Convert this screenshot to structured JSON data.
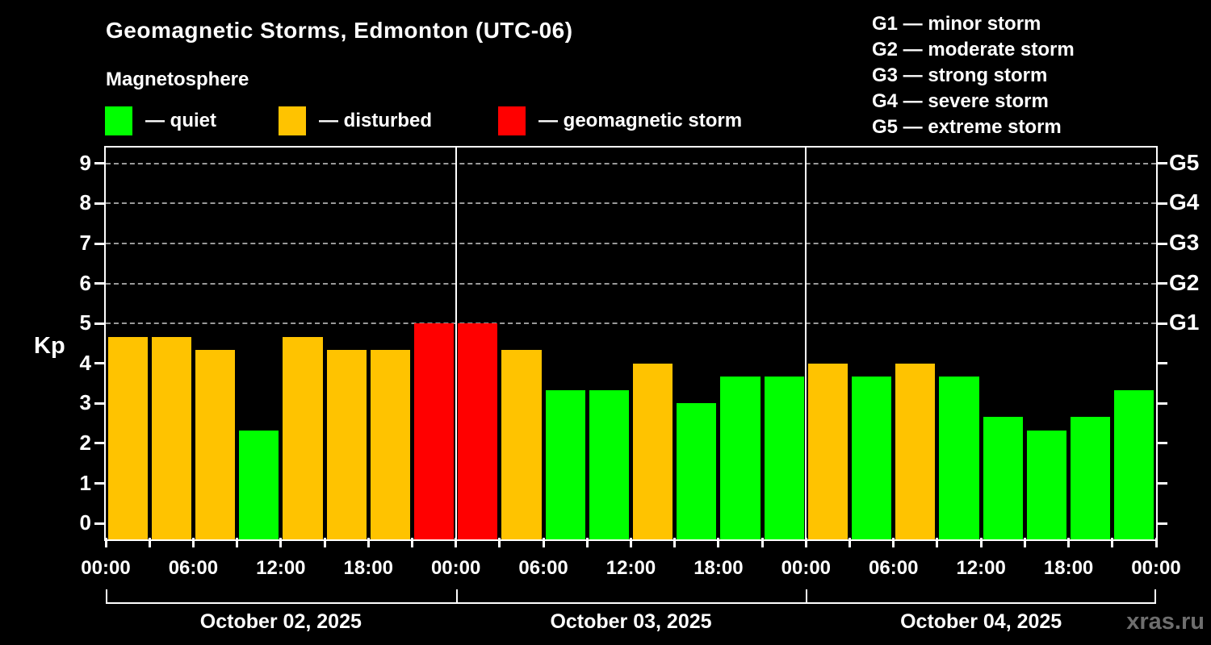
{
  "header": {
    "title": "Geomagnetic Storms, Edmonton (UTC-06)",
    "subtitle": "Magnetosphere"
  },
  "legend": {
    "items": [
      {
        "name": "quiet",
        "label": "— quiet",
        "color": "#00ff00"
      },
      {
        "name": "disturbed",
        "label": "— disturbed",
        "color": "#ffc300"
      },
      {
        "name": "storm",
        "label": "— geomagnetic storm",
        "color": "#ff0000"
      }
    ]
  },
  "storm_scale_legend": {
    "items": [
      "G1 — minor storm",
      "G2 — moderate storm",
      "G3 — strong storm",
      "G4 — severe storm",
      "G5 — extreme storm"
    ]
  },
  "watermark": "xras.ru",
  "chart_data": {
    "type": "bar",
    "title": "Geomagnetic Storms, Edmonton (UTC-06)",
    "ylabel": "Kp",
    "ylim": [
      -0.4,
      9.4
    ],
    "y_ticks": [
      0,
      1,
      2,
      3,
      4,
      5,
      6,
      7,
      8,
      9
    ],
    "gridlines_at": [
      5,
      6,
      7,
      8,
      9
    ],
    "grid_style": "dashed",
    "right_axis_labels": [
      {
        "value": 5,
        "label": "G1"
      },
      {
        "value": 6,
        "label": "G2"
      },
      {
        "value": 7,
        "label": "G3"
      },
      {
        "value": 8,
        "label": "G4"
      },
      {
        "value": 9,
        "label": "G5"
      }
    ],
    "x_hours_total": 72,
    "bar_interval_hours": 3,
    "x_tick_every_hours": 3,
    "x_label_every_hours": 6,
    "x_tick_labels": [
      "00:00",
      "06:00",
      "12:00",
      "18:00",
      "00:00",
      "06:00",
      "12:00",
      "18:00",
      "00:00",
      "06:00",
      "12:00",
      "18:00",
      "00:00"
    ],
    "days": [
      "October 02, 2025",
      "October 03, 2025",
      "October 04, 2025"
    ],
    "colors": {
      "quiet": "#00ff00",
      "disturbed": "#ffc300",
      "storm": "#ff0000"
    },
    "series": [
      {
        "name": "Kp index",
        "values": [
          4.67,
          4.67,
          4.33,
          2.33,
          4.67,
          4.33,
          4.33,
          5.0,
          5.0,
          4.33,
          3.33,
          3.33,
          4.0,
          3.0,
          3.67,
          3.67,
          4.0,
          3.67,
          4.0,
          3.67,
          2.67,
          2.33,
          2.67,
          3.33
        ],
        "statuses": [
          "disturbed",
          "disturbed",
          "disturbed",
          "quiet",
          "disturbed",
          "disturbed",
          "disturbed",
          "storm",
          "storm",
          "disturbed",
          "quiet",
          "quiet",
          "disturbed",
          "quiet",
          "quiet",
          "quiet",
          "disturbed",
          "quiet",
          "disturbed",
          "quiet",
          "quiet",
          "quiet",
          "quiet",
          "quiet"
        ]
      }
    ]
  }
}
